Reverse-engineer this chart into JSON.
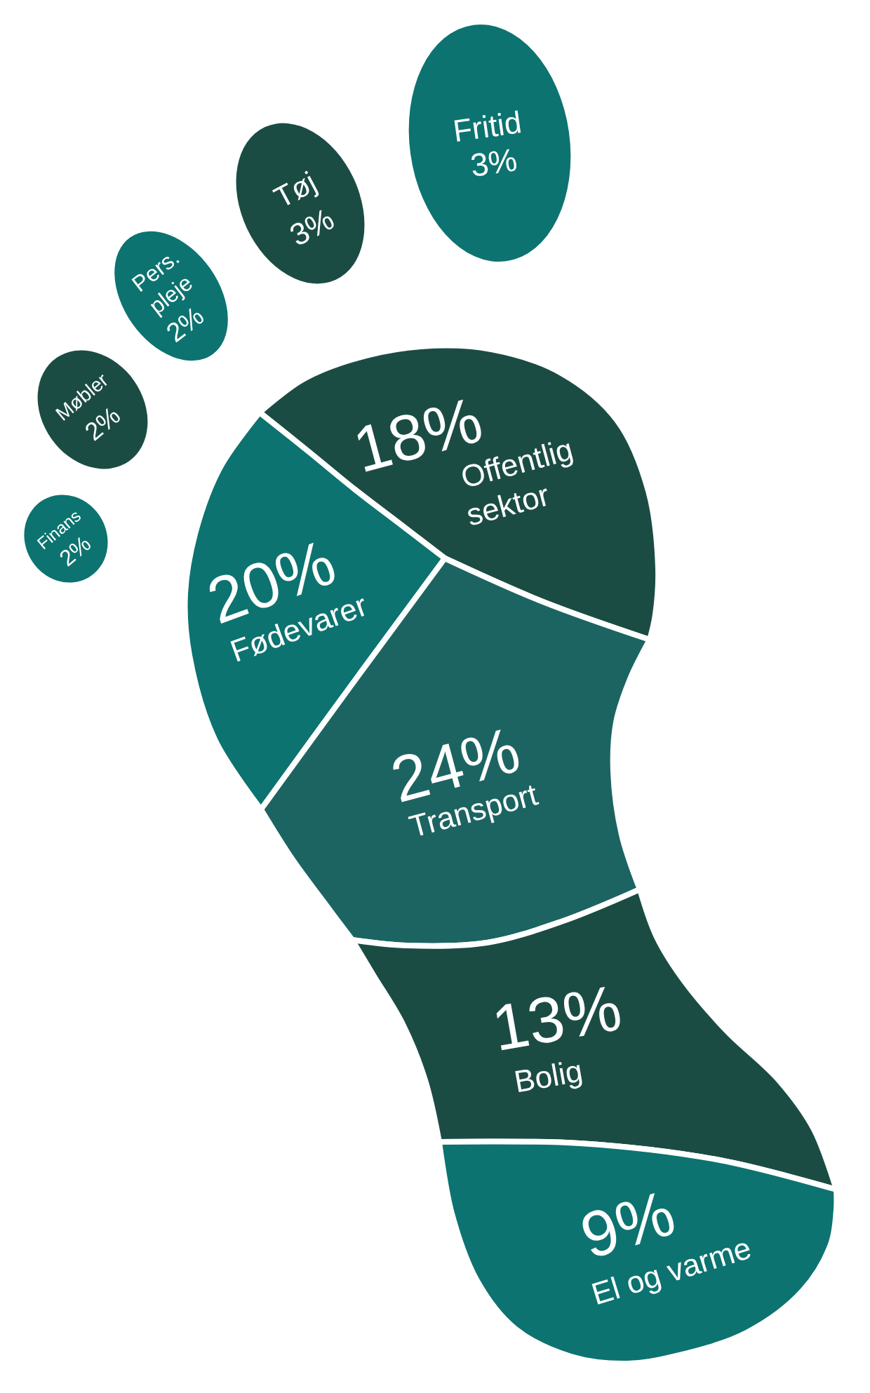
{
  "chart_data": {
    "type": "other",
    "categories": [
      "Fritid",
      "Tøj",
      "Pers. pleje",
      "Møbler",
      "Finans",
      "Offentlig sektor",
      "Fødevarer",
      "Transport",
      "Bolig",
      "El og varme"
    ],
    "values": [
      3,
      3,
      2,
      2,
      2,
      18,
      20,
      24,
      13,
      9
    ],
    "value_labels": [
      "3%",
      "3%",
      "2%",
      "2%",
      "2%",
      "18%",
      "20%",
      "24%",
      "13%",
      "9%"
    ],
    "colors": [
      "#0c7370",
      "#1b4c44",
      "#0c7370",
      "#1b4c44",
      "#0c7370",
      "#1b4c44",
      "#0c7370",
      "#1c6462",
      "#1b4c44",
      "#0c7370"
    ]
  }
}
